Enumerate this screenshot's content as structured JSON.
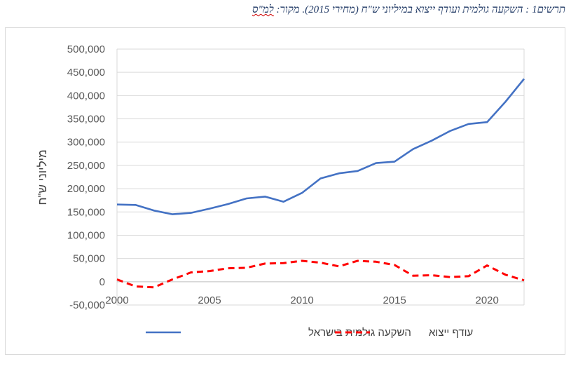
{
  "caption": {
    "text": "תרשים1 : השקעה גולמית ועודף ייצוא במיליוני ש\"ח (מחירי 2015). מקור:",
    "source": "למ\"ס"
  },
  "chart_data": {
    "type": "line",
    "title": "",
    "xlabel": "",
    "ylabel": "מיליוני ש\"ח",
    "xlim": [
      2000,
      2022
    ],
    "ylim": [
      -50000,
      500000
    ],
    "x_ticks": [
      2000,
      2005,
      2010,
      2015,
      2020
    ],
    "y_ticks": [
      -50000,
      0,
      50000,
      100000,
      150000,
      200000,
      250000,
      300000,
      350000,
      400000,
      450000,
      500000
    ],
    "y_tick_labels": [
      "-50,000",
      "0",
      "50,000",
      "100,000",
      "150,000",
      "200,000",
      "250,000",
      "300,000",
      "350,000",
      "400,000",
      "450,000",
      "500,000"
    ],
    "x_tick_labels": [
      "2000",
      "2005",
      "2010",
      "2015",
      "2020"
    ],
    "grid": "horizontal",
    "legend_position": "bottom",
    "x": [
      2000,
      2001,
      2002,
      2003,
      2004,
      2005,
      2006,
      2007,
      2008,
      2009,
      2010,
      2011,
      2012,
      2013,
      2014,
      2015,
      2016,
      2017,
      2018,
      2019,
      2020,
      2021,
      2022
    ],
    "series": [
      {
        "name": "השקעה גולמית בישראל",
        "color": "#4472c4",
        "style": "solid",
        "values": [
          166000,
          165000,
          153000,
          145000,
          148000,
          157000,
          167000,
          179000,
          183000,
          172000,
          191000,
          222000,
          233000,
          238000,
          255000,
          258000,
          285000,
          303000,
          324000,
          339000,
          343000,
          387000,
          436000
        ]
      },
      {
        "name": "עודף ייצוא",
        "color": "#ff0000",
        "style": "dashed",
        "values": [
          5000,
          -10000,
          -12000,
          5000,
          20000,
          23000,
          29000,
          30000,
          39000,
          40000,
          45000,
          41000,
          33000,
          45000,
          43000,
          36000,
          13000,
          14000,
          10000,
          12000,
          35000,
          15000,
          3000
        ]
      }
    ]
  }
}
